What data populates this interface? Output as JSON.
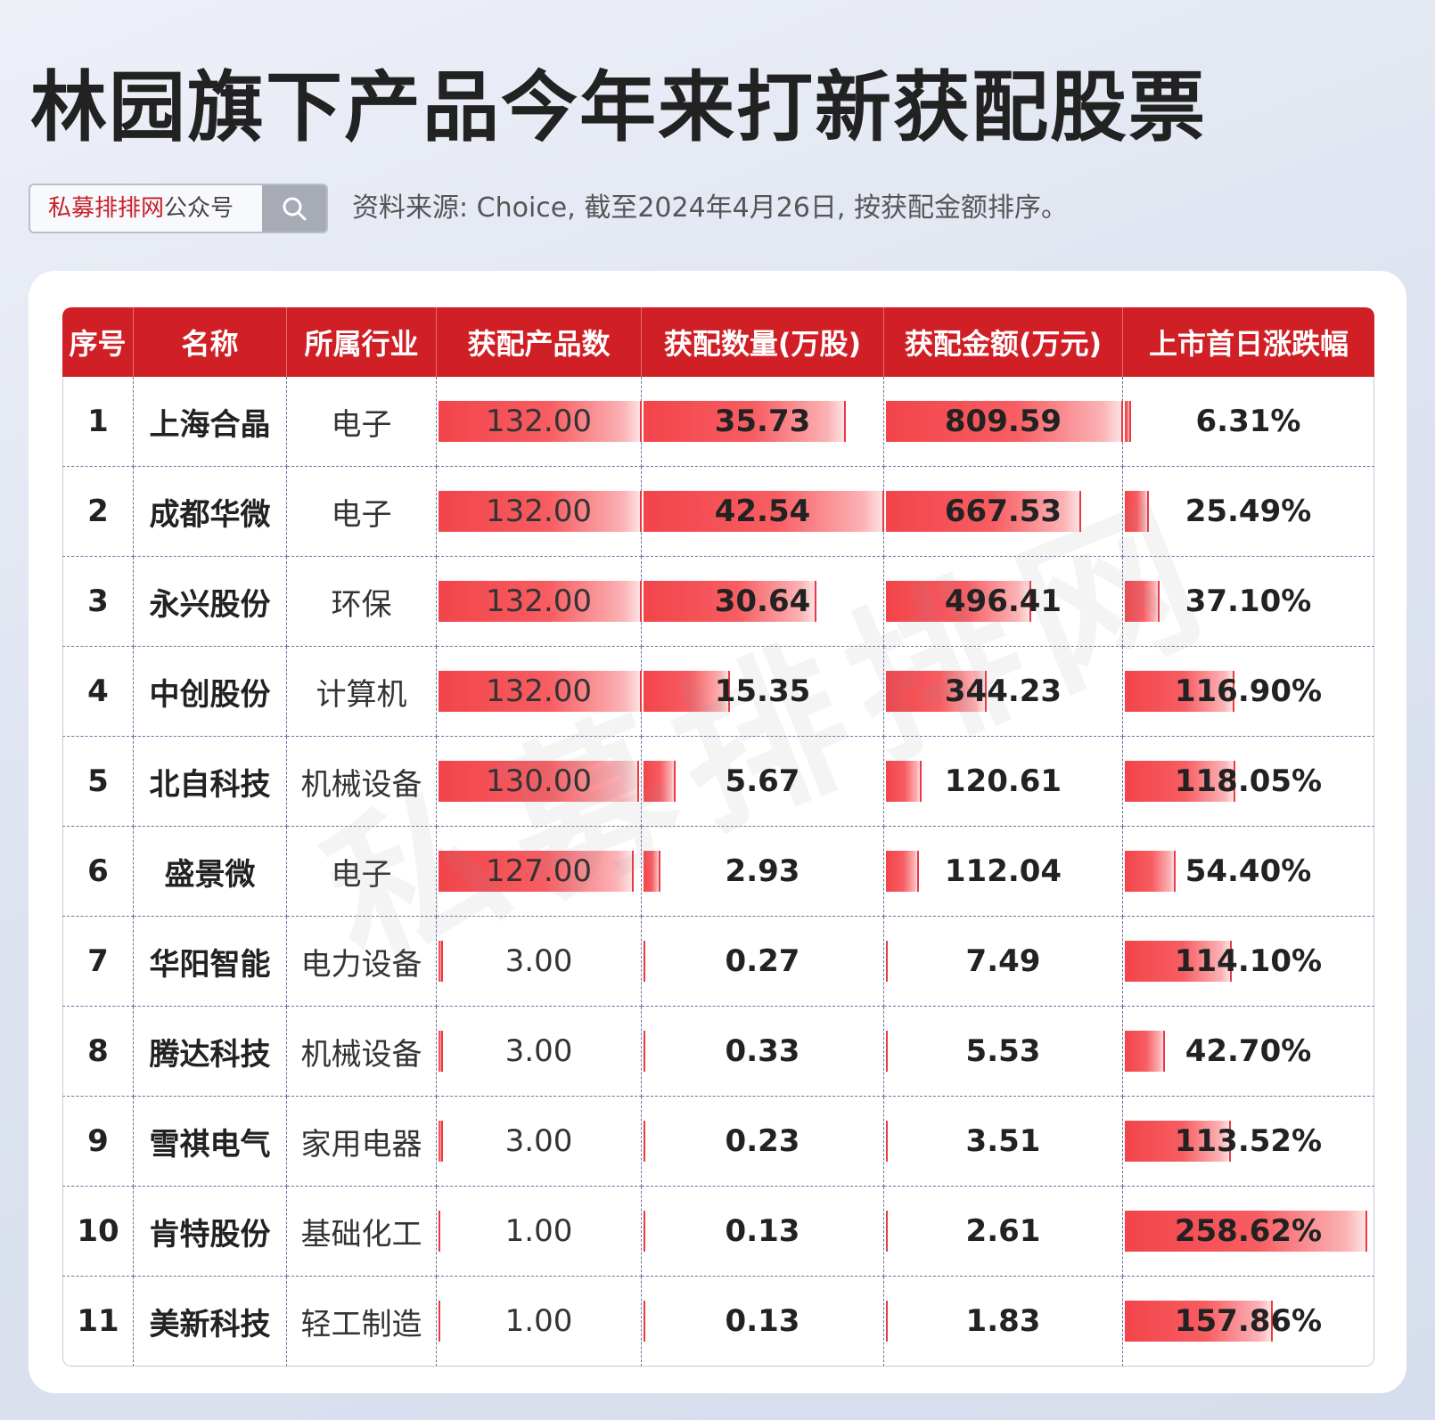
{
  "title": "林园旗下产品今年来打新获配股票",
  "search": {
    "brand": "私募排排网",
    "suffix": "公众号"
  },
  "source_note": "资料来源: Choice, 截至2024年4月26日, 按获配金额排序。",
  "watermark": "私募排排网",
  "colors": {
    "header_bg": "#d11f26",
    "bar_start": "#f2444a",
    "bar_end": "#fde2e3",
    "brand_text": "#c8202a"
  },
  "chart_data": {
    "type": "table",
    "columns": [
      "序号",
      "名称",
      "所属行业",
      "获配产品数",
      "获配数量(万股)",
      "获配金额(万元)",
      "上市首日涨跌幅"
    ],
    "bar_max": {
      "products": 132,
      "shares": 42.54,
      "amount": 809.59,
      "change": 258.62
    },
    "rows": [
      {
        "idx": "1",
        "name": "上海合晶",
        "industry": "电子",
        "products": "132.00",
        "shares": "35.73",
        "amount": "809.59",
        "change": "6.31%"
      },
      {
        "idx": "2",
        "name": "成都华微",
        "industry": "电子",
        "products": "132.00",
        "shares": "42.54",
        "amount": "667.53",
        "change": "25.49%"
      },
      {
        "idx": "3",
        "name": "永兴股份",
        "industry": "环保",
        "products": "132.00",
        "shares": "30.64",
        "amount": "496.41",
        "change": "37.10%"
      },
      {
        "idx": "4",
        "name": "中创股份",
        "industry": "计算机",
        "products": "132.00",
        "shares": "15.35",
        "amount": "344.23",
        "change": "116.90%"
      },
      {
        "idx": "5",
        "name": "北自科技",
        "industry": "机械设备",
        "products": "130.00",
        "shares": "5.67",
        "amount": "120.61",
        "change": "118.05%"
      },
      {
        "idx": "6",
        "name": "盛景微",
        "industry": "电子",
        "products": "127.00",
        "shares": "2.93",
        "amount": "112.04",
        "change": "54.40%"
      },
      {
        "idx": "7",
        "name": "华阳智能",
        "industry": "电力设备",
        "products": "3.00",
        "shares": "0.27",
        "amount": "7.49",
        "change": "114.10%"
      },
      {
        "idx": "8",
        "name": "腾达科技",
        "industry": "机械设备",
        "products": "3.00",
        "shares": "0.33",
        "amount": "5.53",
        "change": "42.70%"
      },
      {
        "idx": "9",
        "name": "雪祺电气",
        "industry": "家用电器",
        "products": "3.00",
        "shares": "0.23",
        "amount": "3.51",
        "change": "113.52%"
      },
      {
        "idx": "10",
        "name": "肯特股份",
        "industry": "基础化工",
        "products": "1.00",
        "shares": "0.13",
        "amount": "2.61",
        "change": "258.62%"
      },
      {
        "idx": "11",
        "name": "美新科技",
        "industry": "轻工制造",
        "products": "1.00",
        "shares": "0.13",
        "amount": "1.83",
        "change": "157.86%"
      }
    ]
  }
}
